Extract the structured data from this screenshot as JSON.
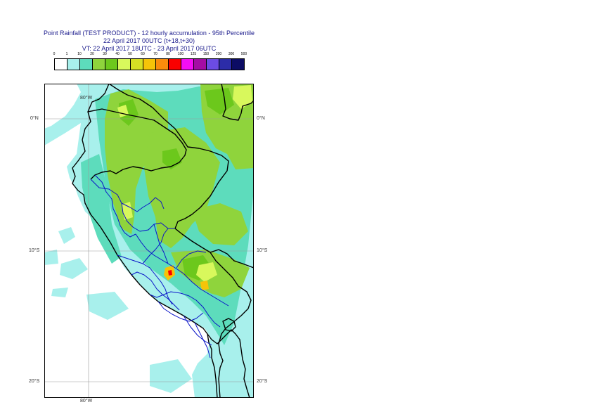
{
  "title": {
    "line1": "Point Rainfall (TEST PRODUCT) - 12 hourly accumulation - 95th Percentile",
    "line2": "22 April 2017 00UTC (t+18,t+30)",
    "line3": "VT: 22 April 2017 18UTC - 23 April 2017 06UTC"
  },
  "legend": {
    "ticks": [
      "0",
      "1",
      "10",
      "20",
      "30",
      "40",
      "50",
      "60",
      "70",
      "80",
      "100",
      "125",
      "150",
      "200",
      "300",
      "500"
    ],
    "colors": [
      "#ffffff",
      "#a8f0ec",
      "#5ddcbc",
      "#8fd43c",
      "#6cc81c",
      "#d8f85c",
      "#d6e024",
      "#f6c408",
      "#fa8c0c",
      "#fa0000",
      "#f40ef4",
      "#a40ca4",
      "#6c4ce4",
      "#2c2ca8",
      "#0c0c64"
    ]
  },
  "map": {
    "colors": {
      "ocean": "#ffffff",
      "low": "#a8f0ec",
      "mid": "#5ddcbc",
      "green": "#8fd43c",
      "dgreen": "#6cc81c",
      "yellow": "#d8f85c",
      "orange": "#f6c408",
      "red": "#fa0000",
      "border_black": "#000000",
      "border_blue": "#0a14c8",
      "grid": "#9a9a9a"
    },
    "lat_labels": [
      {
        "id": "0n",
        "text": "0°N"
      },
      {
        "id": "10s",
        "text": "10°S"
      },
      {
        "id": "20s",
        "text": "20°S"
      }
    ],
    "lon_labels": {
      "top": "80°W",
      "bottom": "80°W"
    }
  }
}
